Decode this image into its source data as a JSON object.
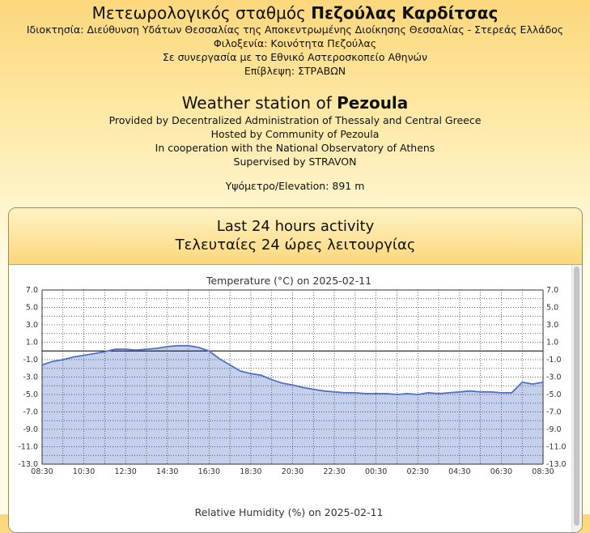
{
  "header": {
    "gr_title_prefix": "Μετεωρολογικός σταθμός ",
    "gr_title_bold": "Πεζούλας Καρδίτσας",
    "gr_lines": [
      "Ιδιοκτησία: Διεύθυνση Υδάτων Θεσσαλίας της Αποκεντρωμένης Διοίκησης Θεσσαλίας - Στερεάς Ελλάδος",
      "Φιλοξενία: Κοινότητα Πεζούλας",
      "Σε συνεργασία με το Εθνικό Αστεροσκοπείο Αθηνών",
      "Επίβλεψη: ΣΤΡΑΒΩΝ"
    ],
    "en_title_prefix": "Weather station of ",
    "en_title_bold": "Pezoula",
    "en_lines": [
      "Provided by Decentralized Administration of Thessaly and Central Greece",
      "Hosted by Community of Pezoula",
      "In cooperation with the National Observatory of Athens",
      "Supervised by STRAVON"
    ],
    "elevation": "Υψόμετρο/Elevation: 891 m"
  },
  "panel": {
    "title_en": "Last 24 hours activity",
    "title_gr": "Τελευταίες 24 ώρες λειτουργίας"
  },
  "colors": {
    "fill": "#c4d0ec",
    "line": "#4f71c8",
    "grid": "#333333"
  },
  "chart_data": [
    {
      "type": "area",
      "title": "Temperature (°C) on 2025-02-11",
      "ylim": [
        -13,
        7
      ],
      "y_ticks": [
        "7.0",
        "5.0",
        "3.0",
        "1.0",
        "-1.0",
        "-3.0",
        "-5.0",
        "-7.0",
        "-9.0",
        "-11.0",
        "-13.0"
      ],
      "x_ticks": [
        "08:30",
        "10:30",
        "12:30",
        "14:30",
        "16:30",
        "18:30",
        "20:30",
        "22:30",
        "00:30",
        "02:30",
        "04:30",
        "06:30",
        "08:30"
      ],
      "grid": true,
      "reference_line": 0,
      "x_hours": [
        0,
        0.5,
        1,
        1.5,
        2,
        2.5,
        3,
        3.5,
        4,
        4.5,
        5,
        5.5,
        6,
        6.5,
        7,
        7.5,
        8,
        8.5,
        9,
        9.5,
        10,
        10.5,
        11,
        11.5,
        12,
        12.5,
        13,
        13.5,
        14,
        14.5,
        15,
        15.5,
        16,
        16.5,
        17,
        17.5,
        18,
        18.5,
        19,
        19.5,
        20,
        20.5,
        21,
        21.5,
        22,
        22.5,
        23,
        23.5,
        24
      ],
      "values": [
        -1.6,
        -1.2,
        -1.0,
        -0.7,
        -0.5,
        -0.3,
        -0.1,
        0.2,
        0.2,
        0.1,
        0.2,
        0.3,
        0.5,
        0.6,
        0.6,
        0.4,
        0.0,
        -0.9,
        -1.6,
        -2.3,
        -2.6,
        -2.8,
        -3.3,
        -3.7,
        -3.9,
        -4.2,
        -4.4,
        -4.6,
        -4.7,
        -4.8,
        -4.8,
        -4.9,
        -4.9,
        -4.9,
        -5.0,
        -4.9,
        -5.0,
        -4.8,
        -4.9,
        -4.8,
        -4.7,
        -4.6,
        -4.7,
        -4.7,
        -4.8,
        -4.8,
        -3.6,
        -3.8,
        -3.6
      ]
    },
    {
      "type": "area",
      "title": "Relative Humidity (%) on 2025-02-11"
    }
  ]
}
